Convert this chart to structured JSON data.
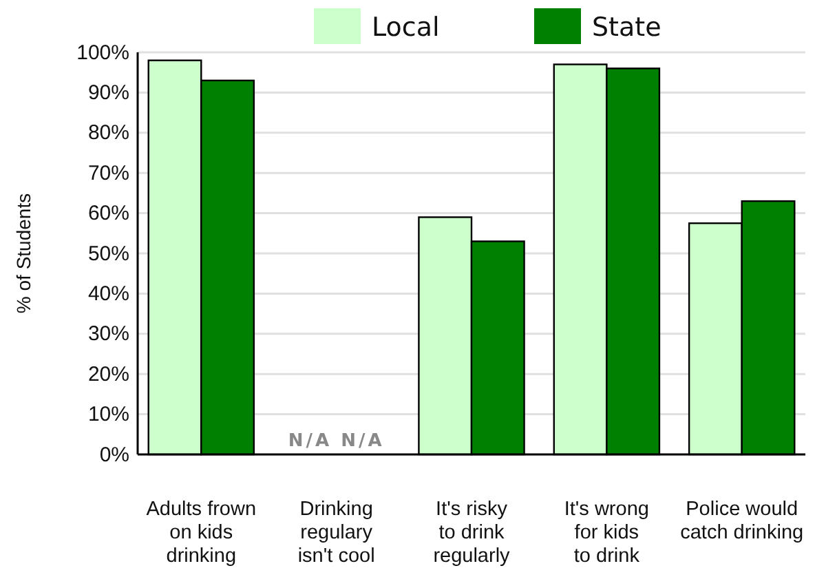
{
  "chart_data": {
    "type": "bar",
    "ylabel": "% of Students",
    "categories": [
      "Adults frown\non kids\ndrinking",
      "Drinking\nregulary\nisn't cool",
      "It's risky\nto drink\nregularly",
      "It's wrong\nfor kids\nto drink",
      "Police would\ncatch drinking"
    ],
    "series": [
      {
        "name": "Local",
        "color": "#ccffcc",
        "values": [
          98,
          null,
          59,
          97,
          57.5
        ],
        "value_labels": [
          null,
          "N/A",
          null,
          null,
          null
        ]
      },
      {
        "name": "State",
        "color": "#008000",
        "values": [
          93,
          null,
          53,
          96,
          63
        ],
        "value_labels": [
          null,
          "N/A",
          null,
          null,
          null
        ]
      }
    ],
    "ylim": [
      0,
      100
    ],
    "yticks": [
      {
        "value": 0,
        "label": "0%"
      },
      {
        "value": 10,
        "label": "10%"
      },
      {
        "value": 20,
        "label": "20%"
      },
      {
        "value": 30,
        "label": "30%"
      },
      {
        "value": 40,
        "label": "40%"
      },
      {
        "value": 50,
        "label": "50%"
      },
      {
        "value": 60,
        "label": "60%"
      },
      {
        "value": 70,
        "label": "70%"
      },
      {
        "value": 80,
        "label": "80%"
      },
      {
        "value": 90,
        "label": "90%"
      },
      {
        "value": 100,
        "label": "100%"
      }
    ],
    "grid": "y",
    "legend": "top"
  }
}
